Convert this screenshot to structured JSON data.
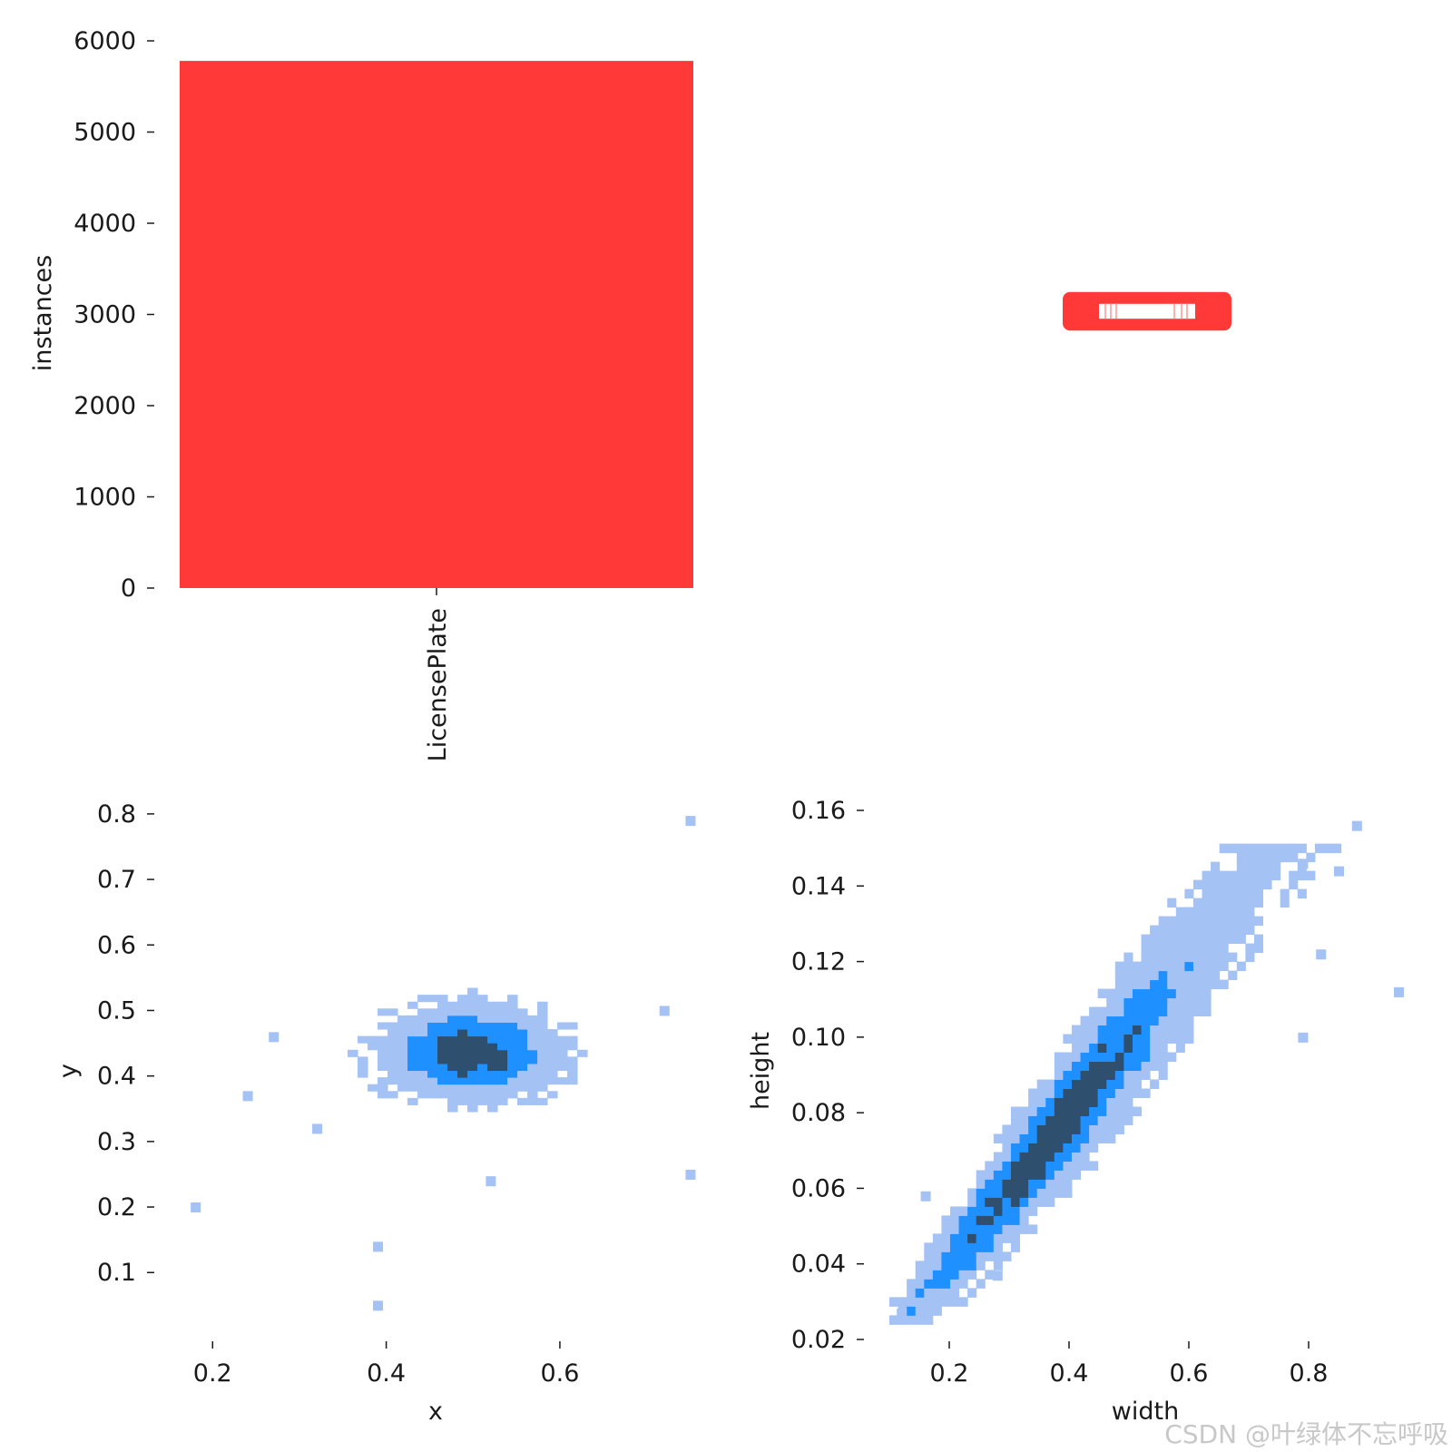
{
  "chart_data": [
    {
      "type": "bar",
      "categories": [
        "LicensePlate"
      ],
      "values": [
        5780
      ],
      "title": "",
      "xlabel": "",
      "ylabel": "instances",
      "ylim": [
        0,
        6000
      ],
      "yticks": [
        0,
        1000,
        2000,
        3000,
        4000,
        5000,
        6000
      ],
      "bar_color": "#ff3838"
    },
    {
      "type": "other",
      "description_key": "bounding-box-overlay",
      "box_color": "#ff3838",
      "box_center": [
        0.5,
        0.5
      ],
      "box_size": [
        0.5,
        0.1
      ]
    },
    {
      "type": "heatmap",
      "xlabel": "x",
      "ylabel": "y",
      "xlim": [
        0.16,
        0.76
      ],
      "ylim": [
        0.02,
        0.84
      ],
      "xticks": [
        0.2,
        0.4,
        0.6
      ],
      "yticks": [
        0.1,
        0.2,
        0.3,
        0.4,
        0.5,
        0.6,
        0.7,
        0.8
      ],
      "center": [
        0.49,
        0.43
      ],
      "spread": [
        0.05,
        0.035
      ],
      "outliers": [
        [
          0.18,
          0.2
        ],
        [
          0.24,
          0.37
        ],
        [
          0.39,
          0.14
        ],
        [
          0.39,
          0.05
        ],
        [
          0.52,
          0.24
        ],
        [
          0.75,
          0.79
        ],
        [
          0.75,
          0.25
        ],
        [
          0.72,
          0.5
        ],
        [
          0.27,
          0.46
        ],
        [
          0.32,
          0.32
        ]
      ],
      "colormap": [
        "#a4c2f4",
        "#1e90ff",
        "#2f4f6f"
      ]
    },
    {
      "type": "heatmap",
      "xlabel": "width",
      "ylabel": "height",
      "xlim": [
        0.06,
        0.98
      ],
      "ylim": [
        0.02,
        0.165
      ],
      "xticks": [
        0.2,
        0.4,
        0.6,
        0.8
      ],
      "yticks": [
        0.02,
        0.04,
        0.06,
        0.08,
        0.1,
        0.12,
        0.14,
        0.16
      ],
      "trend": {
        "slope": 0.2,
        "intercept": 0.0
      },
      "outliers": [
        [
          0.12,
          0.027
        ],
        [
          0.16,
          0.058
        ],
        [
          0.28,
          0.037
        ],
        [
          0.88,
          0.156
        ],
        [
          0.95,
          0.112
        ],
        [
          0.85,
          0.144
        ],
        [
          0.79,
          0.146
        ],
        [
          0.72,
          0.146
        ],
        [
          0.82,
          0.122
        ],
        [
          0.79,
          0.1
        ]
      ],
      "colormap": [
        "#a4c2f4",
        "#1e90ff",
        "#2f4f6f"
      ]
    }
  ],
  "watermark": "CSDN @叶绿体不忘呼吸"
}
